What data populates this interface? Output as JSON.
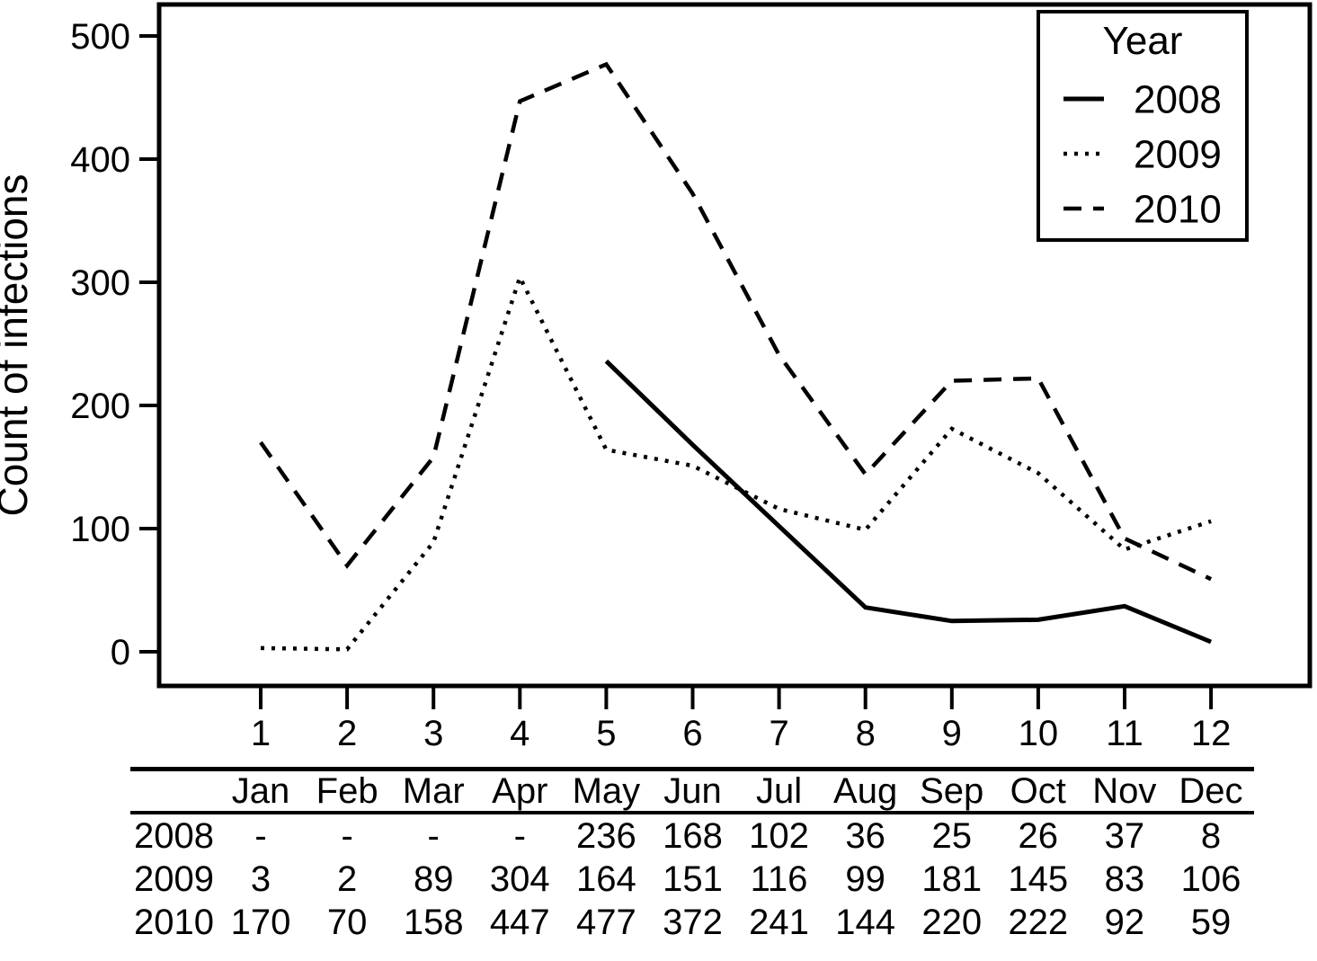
{
  "chart_data": {
    "type": "line",
    "title": "",
    "xlabel": "",
    "ylabel": "Count of infections",
    "legend_title": "Year",
    "legend_position": "top-right",
    "grid": false,
    "line_color": "#000000",
    "x": [
      1,
      2,
      3,
      4,
      5,
      6,
      7,
      8,
      9,
      10,
      11,
      12
    ],
    "x_tick_labels": [
      "1",
      "2",
      "3",
      "4",
      "5",
      "6",
      "7",
      "8",
      "9",
      "10",
      "11",
      "12"
    ],
    "ylim": [
      0,
      500
    ],
    "yticks": [
      0,
      100,
      200,
      300,
      400,
      500
    ],
    "series": [
      {
        "name": "2008",
        "style": "solid",
        "values": [
          null,
          null,
          null,
          null,
          236,
          168,
          102,
          36,
          25,
          26,
          37,
          8
        ]
      },
      {
        "name": "2009",
        "style": "dotted",
        "values": [
          3,
          2,
          89,
          304,
          164,
          151,
          116,
          99,
          181,
          145,
          83,
          106
        ]
      },
      {
        "name": "2010",
        "style": "dashed",
        "values": [
          170,
          70,
          158,
          447,
          477,
          372,
          241,
          144,
          220,
          222,
          92,
          59
        ]
      }
    ]
  },
  "table": {
    "col_headers": [
      "Jan",
      "Feb",
      "Mar",
      "Apr",
      "May",
      "Jun",
      "Jul",
      "Aug",
      "Sep",
      "Oct",
      "Nov",
      "Dec"
    ],
    "rows": [
      {
        "label": "2008",
        "values": [
          "-",
          "-",
          "-",
          "-",
          "236",
          "168",
          "102",
          "36",
          "25",
          "26",
          "37",
          "8"
        ]
      },
      {
        "label": "2009",
        "values": [
          "3",
          "2",
          "89",
          "304",
          "164",
          "151",
          "116",
          "99",
          "181",
          "145",
          "83",
          "106"
        ]
      },
      {
        "label": "2010",
        "values": [
          "170",
          "70",
          "158",
          "447",
          "477",
          "372",
          "241",
          "144",
          "220",
          "222",
          "92",
          "59"
        ]
      }
    ]
  },
  "colors": {
    "foreground": "#000000",
    "background": "#ffffff"
  }
}
